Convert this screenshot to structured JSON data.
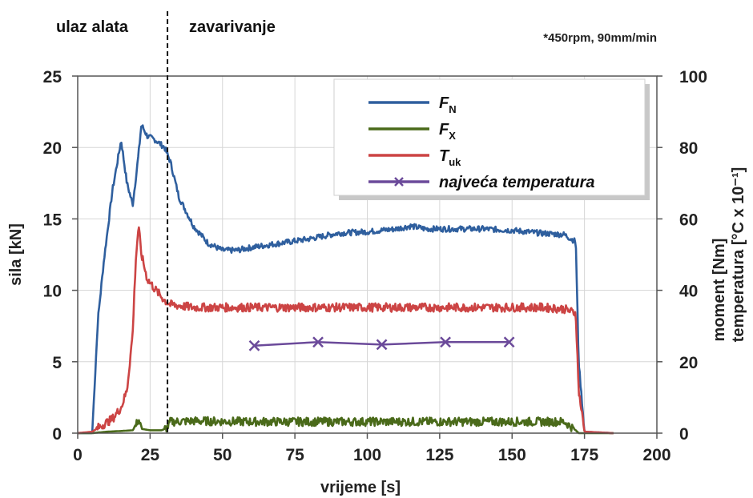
{
  "chart_data": {
    "type": "line",
    "annotations": {
      "phase_left": "ulaz alata",
      "phase_right": "zavarivanje",
      "phase_boundary_x": 31,
      "params_note": "*450rpm, 90mm/min"
    },
    "xlabel": "vrijeme [s]",
    "ylabel": "sila [kN]",
    "ylabel2_line1": "moment [Nm]",
    "ylabel2_line2": "temperatura [°C x 10⁻¹]",
    "xlim": [
      0,
      200
    ],
    "ylim": [
      0,
      25
    ],
    "y2lim": [
      0,
      100
    ],
    "xticks": [
      "0",
      "25",
      "50",
      "75",
      "100",
      "125",
      "150",
      "175",
      "200"
    ],
    "yticks": [
      "0",
      "5",
      "10",
      "15",
      "20",
      "25"
    ],
    "y2ticks": [
      "0",
      "20",
      "40",
      "60",
      "80",
      "100"
    ],
    "grid": true,
    "legend_position": "top-right",
    "legend": [
      {
        "main": "F",
        "sub": "N",
        "color": "#2f5f9e"
      },
      {
        "main": "F",
        "sub": "X",
        "color": "#4a6a1a"
      },
      {
        "main": "T",
        "sub": "uk",
        "color": "#cc4444"
      },
      {
        "main": "najveća temperatura",
        "sub": "",
        "color": "#6b4a9a"
      }
    ],
    "series": [
      {
        "name": "FN",
        "axis": "left",
        "color": "#2f5f9e",
        "noise": 0.2,
        "x": [
          0,
          5,
          7,
          9,
          12,
          15,
          17,
          19,
          21,
          22,
          24,
          27,
          30,
          32,
          35,
          40,
          45,
          50,
          55,
          60,
          70,
          80,
          90,
          100,
          110,
          115,
          120,
          130,
          140,
          150,
          160,
          168,
          172,
          173,
          175,
          185
        ],
        "y": [
          0,
          0,
          8,
          12,
          17,
          20.5,
          17.5,
          16,
          19.5,
          21.6,
          20.8,
          20.5,
          20,
          19,
          16.5,
          14.5,
          13.3,
          12.8,
          12.8,
          13,
          13.3,
          13.6,
          14,
          14.1,
          14.3,
          14.5,
          14.3,
          14.3,
          14.3,
          14.2,
          14,
          13.9,
          13.4,
          5,
          0.1,
          0
        ]
      },
      {
        "name": "FX",
        "axis": "left",
        "color": "#4a6a1a",
        "noise": 0.3,
        "x": [
          0,
          5,
          10,
          15,
          19,
          20,
          21,
          22,
          25,
          29,
          31,
          32,
          40,
          60,
          80,
          100,
          120,
          140,
          160,
          168,
          170,
          172,
          173,
          175,
          185
        ],
        "y": [
          0,
          0,
          0.1,
          0.15,
          0.2,
          0.5,
          1,
          0.3,
          0.2,
          0.2,
          0.4,
          0.8,
          0.85,
          0.8,
          0.8,
          0.8,
          0.8,
          0.8,
          0.8,
          0.8,
          0.5,
          0.2,
          0,
          0,
          0
        ]
      },
      {
        "name": "Tuk",
        "axis": "left",
        "color": "#cc4444",
        "noise": 0.3,
        "x": [
          0,
          5,
          8,
          12,
          15,
          17,
          19,
          20,
          21,
          22,
          24,
          27,
          30,
          32,
          40,
          60,
          80,
          100,
          120,
          140,
          160,
          168,
          172,
          173,
          175,
          185
        ],
        "y": [
          0,
          0.1,
          0.5,
          1,
          1.8,
          3,
          7,
          12,
          14.5,
          12.5,
          10.8,
          10,
          9.3,
          9,
          8.8,
          8.8,
          8.8,
          8.8,
          8.8,
          8.8,
          8.8,
          8.7,
          8.4,
          3,
          0.1,
          0
        ]
      },
      {
        "name": "najveća temperatura",
        "axis": "right",
        "color": "#6b4a9a",
        "markers": true,
        "x": [
          61,
          83,
          105,
          127,
          149
        ],
        "y": [
          24.5,
          25.5,
          24.8,
          25.5,
          25.5
        ]
      }
    ]
  }
}
